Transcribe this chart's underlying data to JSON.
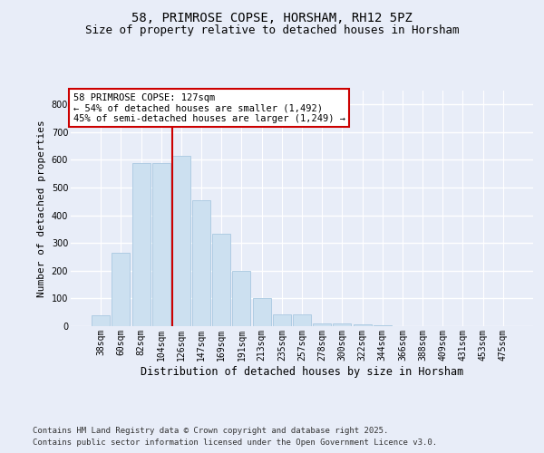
{
  "title_line1": "58, PRIMROSE COPSE, HORSHAM, RH12 5PZ",
  "title_line2": "Size of property relative to detached houses in Horsham",
  "xlabel": "Distribution of detached houses by size in Horsham",
  "ylabel": "Number of detached properties",
  "categories": [
    "38sqm",
    "60sqm",
    "82sqm",
    "104sqm",
    "126sqm",
    "147sqm",
    "169sqm",
    "191sqm",
    "213sqm",
    "235sqm",
    "257sqm",
    "278sqm",
    "300sqm",
    "322sqm",
    "344sqm",
    "366sqm",
    "388sqm",
    "409sqm",
    "431sqm",
    "453sqm",
    "475sqm"
  ],
  "values": [
    40,
    265,
    590,
    590,
    615,
    455,
    335,
    200,
    100,
    43,
    43,
    10,
    10,
    8,
    2,
    0,
    0,
    0,
    0,
    0,
    0
  ],
  "bar_color": "#cce0f0",
  "bar_edgecolor": "#a8c8e0",
  "vline_bar_index": 4,
  "vline_color": "#cc0000",
  "annotation_text": "58 PRIMROSE COPSE: 127sqm\n← 54% of detached houses are smaller (1,492)\n45% of semi-detached houses are larger (1,249) →",
  "annotation_box_edgecolor": "#cc0000",
  "annotation_box_facecolor": "#ffffff",
  "ylim": [
    0,
    850
  ],
  "yticks": [
    0,
    100,
    200,
    300,
    400,
    500,
    600,
    700,
    800
  ],
  "background_color": "#e8edf8",
  "grid_color": "#ffffff",
  "footer_line1": "Contains HM Land Registry data © Crown copyright and database right 2025.",
  "footer_line2": "Contains public sector information licensed under the Open Government Licence v3.0.",
  "title_fontsize": 10,
  "subtitle_fontsize": 9,
  "tick_fontsize": 7,
  "xlabel_fontsize": 8.5,
  "ylabel_fontsize": 8,
  "annotation_fontsize": 7.5,
  "footer_fontsize": 6.5
}
